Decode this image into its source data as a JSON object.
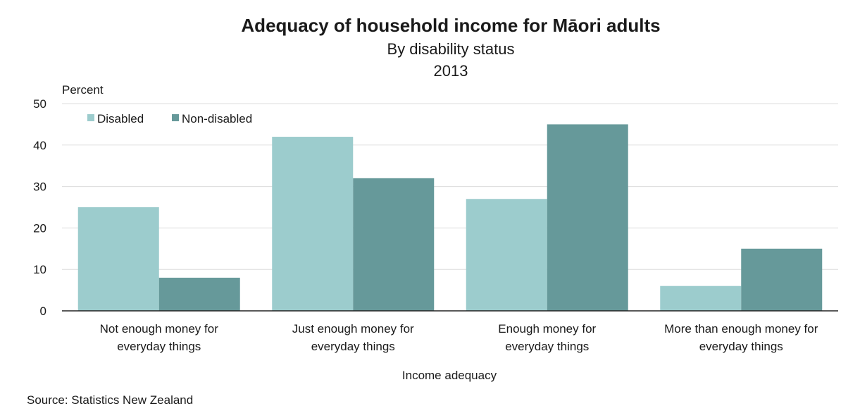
{
  "chart_data": {
    "type": "bar",
    "title": "Adequacy of household income for Māori adults",
    "subtitle": "By disability status",
    "year": "2013",
    "ylabel": "Percent",
    "xlabel": "Income adequacy",
    "ylim": [
      0,
      50
    ],
    "yticks": [
      "0",
      "10",
      "20",
      "30",
      "40",
      "50"
    ],
    "grid": true,
    "legend_position": "top-left",
    "categories": [
      [
        "Not enough money for",
        "everyday things"
      ],
      [
        "Just enough money for",
        "everyday things"
      ],
      [
        "Enough money for",
        "everyday things"
      ],
      [
        "More than enough money for",
        "everyday things"
      ]
    ],
    "series": [
      {
        "name": "Disabled",
        "color": "#9ccccd",
        "values": [
          25,
          42,
          27,
          6
        ]
      },
      {
        "name": "Non-disabled",
        "color": "#66999a",
        "values": [
          8,
          32,
          45,
          15
        ]
      }
    ],
    "source": "Source: Statistics New Zealand"
  }
}
